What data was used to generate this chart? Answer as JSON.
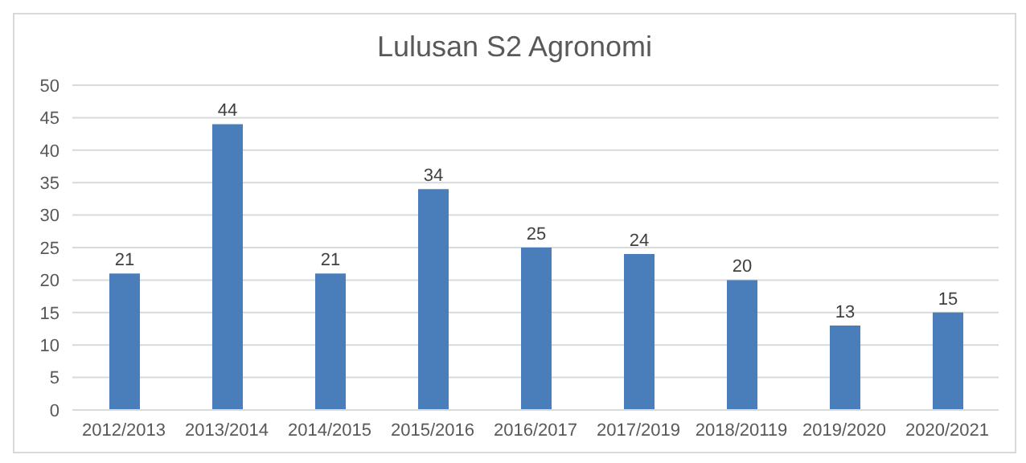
{
  "chart_data": {
    "type": "bar",
    "title": "Lulusan S2 Agronomi",
    "categories": [
      "2012/2013",
      "2013/2014",
      "2014/2015",
      "2015/2016",
      "2016/2017",
      "2017/2019",
      "2018/20119",
      "2019/2020",
      "2020/2021"
    ],
    "values": [
      21,
      44,
      21,
      34,
      25,
      24,
      20,
      13,
      15
    ],
    "color": "#4a7ebb",
    "ylim": [
      0,
      50
    ],
    "yticks": [
      0,
      5,
      10,
      15,
      20,
      25,
      30,
      35,
      40,
      45,
      50
    ],
    "grid": "y",
    "data_labels": true
  }
}
